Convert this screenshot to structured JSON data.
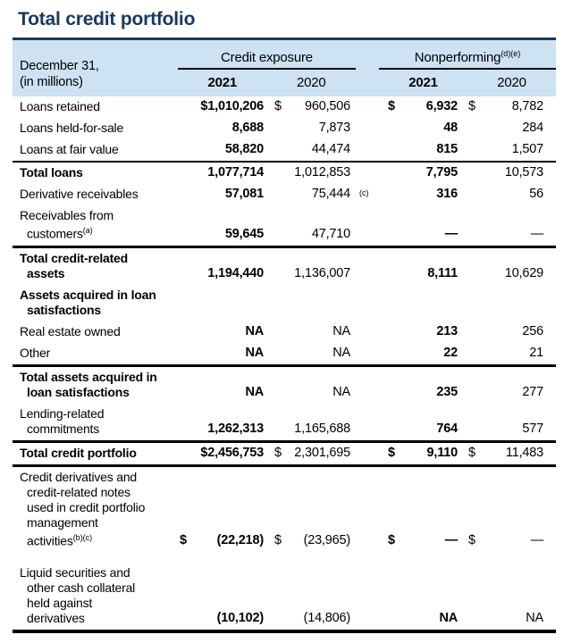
{
  "title": "Total credit portfolio",
  "colors": {
    "title_navy": "#17395f",
    "header_band_blue": "#cde2f2",
    "text": "#000000"
  },
  "table": {
    "date_label": [
      "December 31,",
      "(in millions)"
    ],
    "groups": [
      {
        "label": "Credit exposure",
        "sup": "",
        "years": [
          "2021",
          "2020"
        ]
      },
      {
        "label": "Nonperforming",
        "sup": "(d)(e)",
        "years": [
          "2021",
          "2020"
        ]
      }
    ],
    "rows": [
      {
        "label": [
          {
            "text": "Loans retained"
          }
        ],
        "bold_label": false,
        "rule_top": "",
        "rule_bottom": "",
        "spacer": false,
        "ce2021": {
          "dollar": "$",
          "attached": true,
          "value": "1,010,206",
          "bold": true
        },
        "ce2020": {
          "dollar": "$",
          "value": "960,506",
          "bold": false
        },
        "fn": "",
        "np2021": {
          "dollar": "$",
          "value": "6,932",
          "bold": true
        },
        "np2020": {
          "dollar": "$",
          "value": "8,782",
          "bold": false
        }
      },
      {
        "label": [
          {
            "text": "Loans held-for-sale"
          }
        ],
        "bold_label": false,
        "rule_top": "",
        "rule_bottom": "",
        "spacer": false,
        "ce2021": {
          "dollar": "",
          "value": "8,688",
          "bold": true
        },
        "ce2020": {
          "dollar": "",
          "value": "7,873",
          "bold": false
        },
        "fn": "",
        "np2021": {
          "dollar": "",
          "value": "48",
          "bold": true
        },
        "np2020": {
          "dollar": "",
          "value": "284",
          "bold": false
        }
      },
      {
        "label": [
          {
            "text": "Loans at fair value"
          }
        ],
        "bold_label": false,
        "rule_top": "",
        "rule_bottom": "",
        "spacer": false,
        "ce2021": {
          "dollar": "",
          "value": "58,820",
          "bold": true
        },
        "ce2020": {
          "dollar": "",
          "value": "44,474",
          "bold": false
        },
        "fn": "",
        "np2021": {
          "dollar": "",
          "value": "815",
          "bold": true
        },
        "np2020": {
          "dollar": "",
          "value": "1,507",
          "bold": false
        }
      },
      {
        "label": [
          {
            "text": "Total loans"
          }
        ],
        "bold_label": true,
        "rule_top": "medium",
        "rule_bottom": "",
        "spacer": false,
        "ce2021": {
          "dollar": "",
          "value": "1,077,714",
          "bold": true
        },
        "ce2020": {
          "dollar": "",
          "value": "1,012,853",
          "bold": false
        },
        "fn": "",
        "np2021": {
          "dollar": "",
          "value": "7,795",
          "bold": true
        },
        "np2020": {
          "dollar": "",
          "value": "10,573",
          "bold": false
        }
      },
      {
        "label": [
          {
            "text": "Derivative receivables"
          }
        ],
        "bold_label": false,
        "rule_top": "",
        "rule_bottom": "",
        "spacer": false,
        "ce2021": {
          "dollar": "",
          "value": "57,081",
          "bold": true
        },
        "ce2020": {
          "dollar": "",
          "value": "75,444",
          "bold": false
        },
        "fn": "(c)",
        "np2021": {
          "dollar": "",
          "value": "316",
          "bold": true
        },
        "np2020": {
          "dollar": "",
          "value": "56",
          "bold": false
        }
      },
      {
        "label": [
          {
            "text": "Receivables from"
          },
          {
            "text": "customers",
            "sup": "(a)"
          }
        ],
        "bold_label": false,
        "rule_top": "",
        "rule_bottom": "",
        "spacer": false,
        "ce2021": {
          "dollar": "",
          "value": "59,645",
          "bold": true
        },
        "ce2020": {
          "dollar": "",
          "value": "47,710",
          "bold": false
        },
        "fn": "",
        "np2021": {
          "dollar": "",
          "value": "—",
          "bold": true
        },
        "np2020": {
          "dollar": "",
          "value": "—",
          "bold": false
        }
      },
      {
        "label": [
          {
            "text": "Total credit-related"
          },
          {
            "text": "assets"
          }
        ],
        "bold_label": true,
        "rule_top": "thick",
        "rule_bottom": "",
        "spacer": false,
        "ce2021": {
          "dollar": "",
          "value": "1,194,440",
          "bold": true
        },
        "ce2020": {
          "dollar": "",
          "value": "1,136,007",
          "bold": false
        },
        "fn": "",
        "np2021": {
          "dollar": "",
          "value": "8,111",
          "bold": true
        },
        "np2020": {
          "dollar": "",
          "value": "10,629",
          "bold": false
        }
      },
      {
        "label": [
          {
            "text": "Assets acquired in loan"
          },
          {
            "text": "satisfactions"
          }
        ],
        "bold_label": true,
        "rule_top": "",
        "rule_bottom": "",
        "spacer": false,
        "ce2021": {
          "dollar": "",
          "value": "",
          "bold": false
        },
        "ce2020": {
          "dollar": "",
          "value": "",
          "bold": false
        },
        "fn": "",
        "np2021": {
          "dollar": "",
          "value": "",
          "bold": false
        },
        "np2020": {
          "dollar": "",
          "value": "",
          "bold": false
        }
      },
      {
        "label": [
          {
            "text": "Real estate owned"
          }
        ],
        "bold_label": false,
        "rule_top": "",
        "rule_bottom": "",
        "spacer": false,
        "ce2021": {
          "dollar": "",
          "value": "NA",
          "bold": true
        },
        "ce2020": {
          "dollar": "",
          "value": "NA",
          "bold": false
        },
        "fn": "",
        "np2021": {
          "dollar": "",
          "value": "213",
          "bold": true
        },
        "np2020": {
          "dollar": "",
          "value": "256",
          "bold": false
        }
      },
      {
        "label": [
          {
            "text": "Other"
          }
        ],
        "bold_label": false,
        "rule_top": "",
        "rule_bottom": "",
        "spacer": false,
        "ce2021": {
          "dollar": "",
          "value": "NA",
          "bold": true
        },
        "ce2020": {
          "dollar": "",
          "value": "NA",
          "bold": false
        },
        "fn": "",
        "np2021": {
          "dollar": "",
          "value": "22",
          "bold": true
        },
        "np2020": {
          "dollar": "",
          "value": "21",
          "bold": false
        }
      },
      {
        "label": [
          {
            "text": "Total assets acquired in"
          },
          {
            "text": "loan satisfactions"
          }
        ],
        "bold_label": true,
        "rule_top": "thick",
        "rule_bottom": "",
        "spacer": false,
        "ce2021": {
          "dollar": "",
          "value": "NA",
          "bold": true
        },
        "ce2020": {
          "dollar": "",
          "value": "NA",
          "bold": false
        },
        "fn": "",
        "np2021": {
          "dollar": "",
          "value": "235",
          "bold": true
        },
        "np2020": {
          "dollar": "",
          "value": "277",
          "bold": false
        }
      },
      {
        "label": [
          {
            "text": "Lending-related"
          },
          {
            "text": "commitments"
          }
        ],
        "bold_label": false,
        "rule_top": "",
        "rule_bottom": "",
        "spacer": false,
        "ce2021": {
          "dollar": "",
          "value": "1,262,313",
          "bold": true
        },
        "ce2020": {
          "dollar": "",
          "value": "1,165,688",
          "bold": false
        },
        "fn": "",
        "np2021": {
          "dollar": "",
          "value": "764",
          "bold": true
        },
        "np2020": {
          "dollar": "",
          "value": "577",
          "bold": false
        }
      },
      {
        "label": [
          {
            "text": "Total credit portfolio"
          }
        ],
        "bold_label": true,
        "rule_top": "thick",
        "rule_bottom": "thick",
        "spacer": false,
        "ce2021": {
          "dollar": "$",
          "attached": true,
          "value": "2,456,753",
          "bold": true
        },
        "ce2020": {
          "dollar": "$",
          "value": "2,301,695",
          "bold": false
        },
        "fn": "",
        "np2021": {
          "dollar": "$",
          "value": "9,110",
          "bold": true
        },
        "np2020": {
          "dollar": "$",
          "value": "11,483",
          "bold": false
        }
      },
      {
        "label": [
          {
            "text": "Credit derivatives and"
          },
          {
            "text": "credit-related notes"
          },
          {
            "text": "used in credit portfolio"
          },
          {
            "text": "management"
          },
          {
            "text": "activities",
            "sup": "(b)(c)"
          }
        ],
        "bold_label": false,
        "rule_top": "",
        "rule_bottom": "",
        "spacer": false,
        "ce2021": {
          "dollar": "$",
          "value": "(22,218)",
          "bold": true
        },
        "ce2020": {
          "dollar": "$",
          "value": "(23,965)",
          "bold": false
        },
        "fn": "",
        "np2021": {
          "dollar": "$",
          "value": "—",
          "bold": true
        },
        "np2020": {
          "dollar": "$",
          "value": "—",
          "bold": false
        }
      },
      {
        "label": [
          {
            "text": "Liquid securities and"
          },
          {
            "text": "other cash collateral"
          },
          {
            "text": "held against"
          },
          {
            "text": "derivatives"
          }
        ],
        "bold_label": false,
        "rule_top": "",
        "rule_bottom": "",
        "spacer": true,
        "ce2021": {
          "dollar": "",
          "value": "(10,102)",
          "bold": true
        },
        "ce2020": {
          "dollar": "",
          "value": "(14,806)",
          "bold": false
        },
        "fn": "",
        "np2021": {
          "dollar": "",
          "value": "NA",
          "bold": true
        },
        "np2020": {
          "dollar": "",
          "value": "NA",
          "bold": false
        }
      }
    ]
  }
}
